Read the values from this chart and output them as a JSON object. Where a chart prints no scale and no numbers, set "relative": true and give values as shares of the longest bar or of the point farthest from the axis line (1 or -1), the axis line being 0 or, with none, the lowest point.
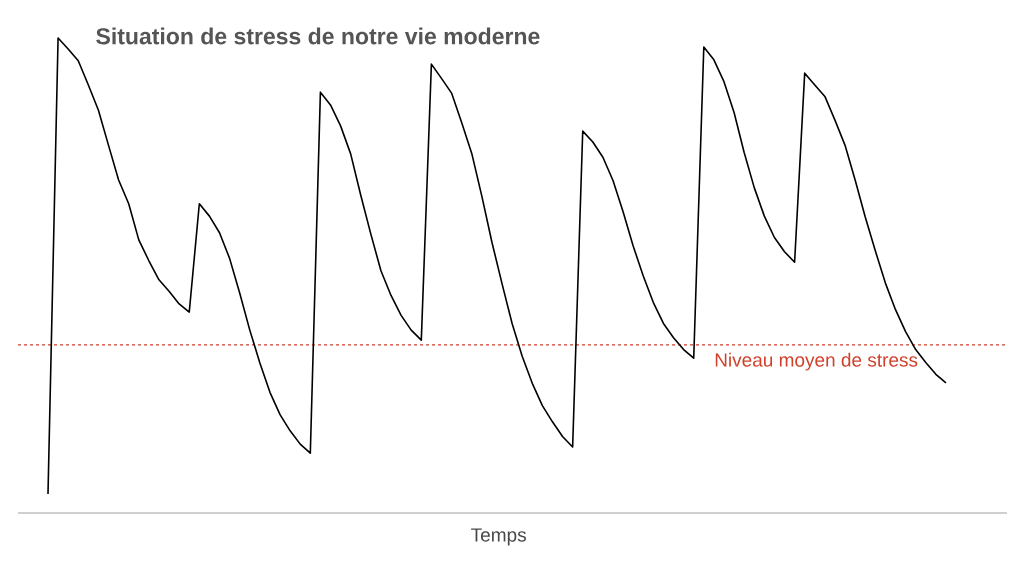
{
  "chart_data": {
    "type": "line",
    "title": "Situation de stress de notre vie moderne",
    "xlabel": "Temps",
    "relative": true,
    "tick_labels": false,
    "color": "#000000",
    "line_style": "solid",
    "categories": [
      null,
      null,
      null,
      null,
      null,
      null,
      null,
      null,
      null,
      null,
      null,
      null,
      null,
      null,
      null,
      null,
      null,
      null,
      null,
      null,
      null,
      null,
      null,
      null,
      null,
      null,
      null,
      null,
      null,
      null,
      null,
      null,
      null,
      null,
      null,
      null,
      null,
      null,
      null,
      null,
      null,
      null,
      null,
      null,
      null,
      null,
      null,
      null,
      null,
      null,
      null,
      null,
      null,
      null,
      null,
      null,
      null,
      null,
      null,
      null,
      null,
      null,
      null,
      null,
      null,
      null,
      null,
      null,
      null,
      null,
      null,
      null,
      null,
      null,
      null,
      null,
      null,
      null,
      null,
      null,
      null,
      null,
      null,
      null,
      null,
      null,
      null,
      null,
      null,
      null
    ],
    "values": [
      0.04,
      1.0,
      0.977,
      0.952,
      0.901,
      0.848,
      0.774,
      0.701,
      0.651,
      0.575,
      0.531,
      0.491,
      0.467,
      0.44,
      0.423,
      0.651,
      0.625,
      0.59,
      0.536,
      0.463,
      0.385,
      0.316,
      0.254,
      0.207,
      0.173,
      0.145,
      0.126,
      0.886,
      0.859,
      0.815,
      0.756,
      0.669,
      0.587,
      0.51,
      0.458,
      0.416,
      0.385,
      0.364,
      0.945,
      0.915,
      0.884,
      0.822,
      0.757,
      0.667,
      0.57,
      0.483,
      0.399,
      0.33,
      0.273,
      0.226,
      0.192,
      0.161,
      0.139,
      0.804,
      0.781,
      0.749,
      0.7,
      0.634,
      0.562,
      0.499,
      0.443,
      0.399,
      0.369,
      0.344,
      0.326,
      0.981,
      0.954,
      0.908,
      0.843,
      0.759,
      0.685,
      0.625,
      0.58,
      0.55,
      0.528,
      0.926,
      0.901,
      0.877,
      0.827,
      0.774,
      0.701,
      0.623,
      0.552,
      0.484,
      0.428,
      0.382,
      0.344,
      0.317,
      0.292,
      0.274
    ],
    "ref_lines": [
      {
        "axis": "y",
        "value": 0.354,
        "label": "Niveau moyen de stress",
        "color": "#d0402b",
        "line_style": "dotted"
      }
    ]
  }
}
